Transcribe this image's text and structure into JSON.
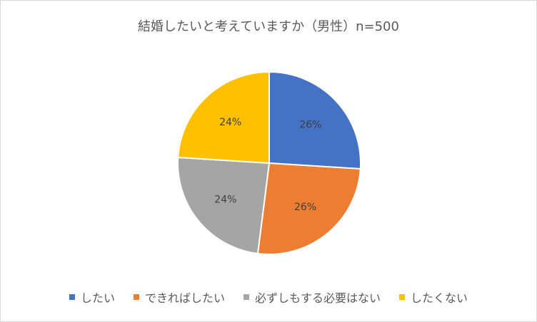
{
  "chart_data": {
    "type": "pie",
    "title": "結婚したいと考えていますか（男性）n=500",
    "categories": [
      "したい",
      "できればしたい",
      "必ずしもする必要はない",
      "したくない"
    ],
    "values": [
      26,
      26,
      24,
      24
    ],
    "value_labels": [
      "26%",
      "26%",
      "24%",
      "24%"
    ],
    "colors": [
      "#4472c4",
      "#ed7d31",
      "#a5a5a5",
      "#ffc000"
    ],
    "legend": "bottom"
  }
}
